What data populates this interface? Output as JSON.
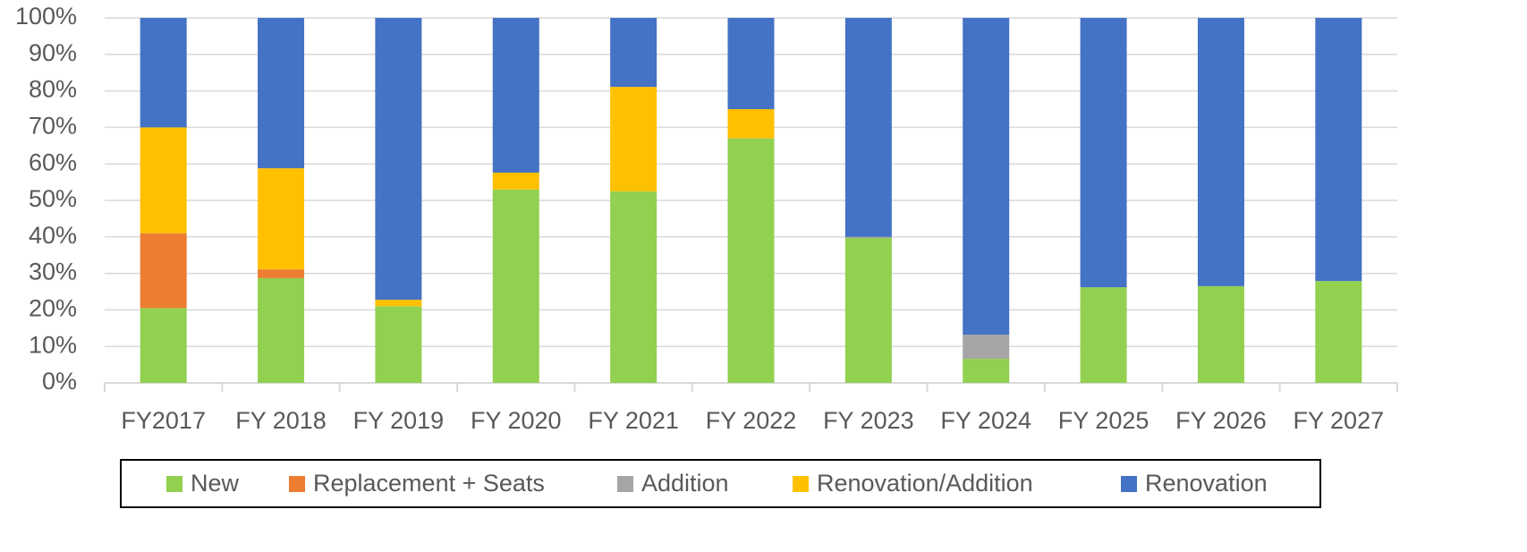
{
  "chart_data": {
    "type": "stacked_bar",
    "categories": [
      "FY2017",
      "FY 2018",
      "FY 2019",
      "FY 2020",
      "FY 2021",
      "FY 2022",
      "FY 2023",
      "FY 2024",
      "FY 2025",
      "FY 2026",
      "FY 2027"
    ],
    "series": [
      {
        "name": "New",
        "color": "#92d050",
        "values": [
          20.5,
          28.7,
          21,
          53,
          52.5,
          67,
          39.7,
          6.6,
          26.2,
          26.5,
          27.9
        ]
      },
      {
        "name": "Replacement + Seats",
        "color": "#ed7d31",
        "values": [
          20.5,
          2.4,
          0,
          0,
          0,
          0,
          0,
          0,
          0,
          0,
          0
        ]
      },
      {
        "name": "Addition",
        "color": "#a5a5a5",
        "values": [
          0,
          0,
          0,
          0,
          0,
          0,
          0.3,
          6.6,
          0,
          0,
          0
        ]
      },
      {
        "name": "Renovation/Addition",
        "color": "#ffc000",
        "values": [
          29,
          27.7,
          1.8,
          4.6,
          28.6,
          8,
          0,
          0,
          0,
          0,
          0
        ]
      },
      {
        "name": "Renovation",
        "color": "#4472c4",
        "values": [
          30,
          41.2,
          77.2,
          42.4,
          18.9,
          25,
          60,
          86.8,
          73.8,
          73.5,
          72.1
        ]
      }
    ],
    "ylim": [
      0,
      100
    ],
    "yticks": [
      {
        "value": 0,
        "label": "0%"
      },
      {
        "value": 10,
        "label": "10%"
      },
      {
        "value": 20,
        "label": "20%"
      },
      {
        "value": 30,
        "label": "30%"
      },
      {
        "value": 40,
        "label": "40%"
      },
      {
        "value": 50,
        "label": "50%"
      },
      {
        "value": 60,
        "label": "60%"
      },
      {
        "value": 70,
        "label": "70%"
      },
      {
        "value": 80,
        "label": "80%"
      },
      {
        "value": 90,
        "label": "90%"
      },
      {
        "value": 100,
        "label": "100%"
      }
    ],
    "grid": true,
    "legend": "bottom"
  }
}
